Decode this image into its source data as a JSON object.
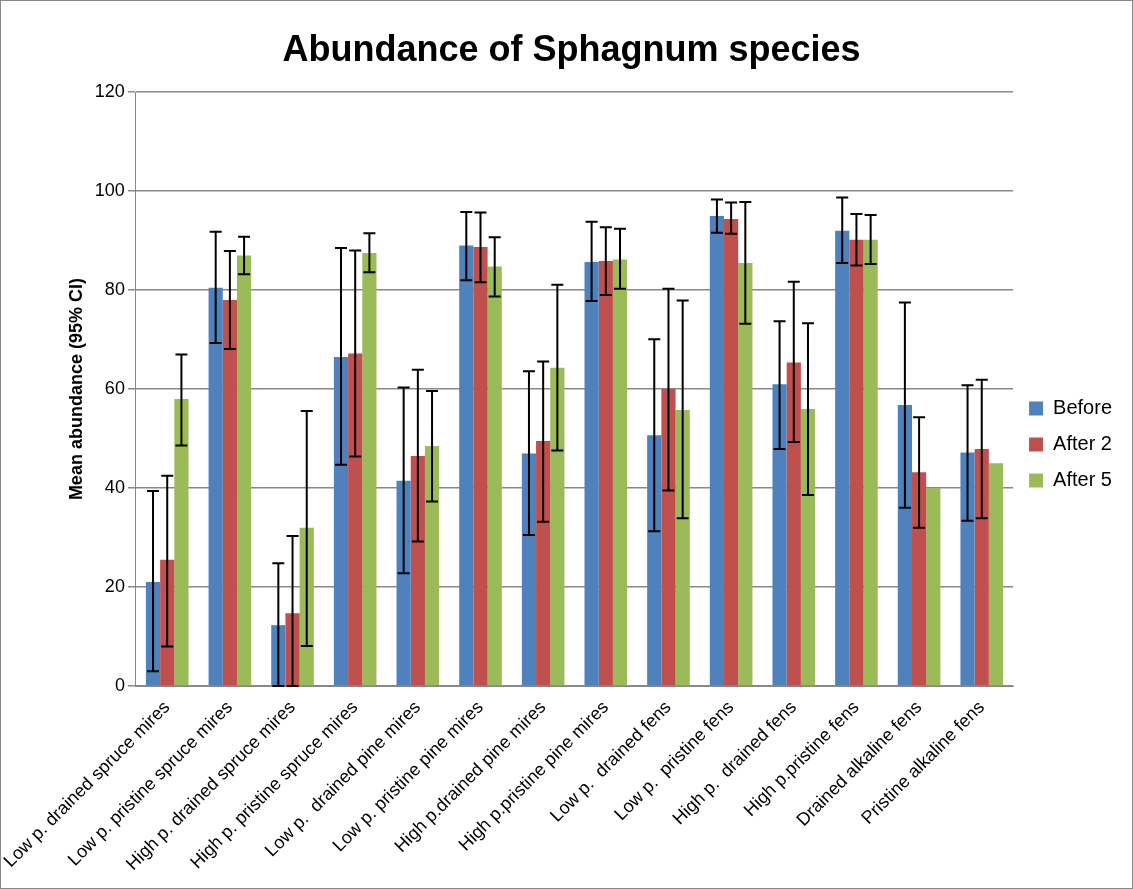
{
  "chart_data": {
    "type": "bar",
    "title": "Abundance of Sphagnum species",
    "ylabel": "Mean abundance (95% CI)",
    "categories": [
      "Low p. drained spruce mires",
      "Low p. pristine spruce mires",
      "High p. drained spruce mires",
      "High p. pristine spruce mires",
      "Low p.  drained pine mires",
      "Low p. pristine pine mires",
      "High p.drained pine mires",
      "High p.pristine pine mires",
      "Low p.  drained fens",
      "Low p.  pristine fens",
      "High p.  drained fens",
      "High p.pristine fens",
      "Drained alkaline fens",
      "Pristine alkaline fens"
    ],
    "series": [
      {
        "name": "Before",
        "color": "#4f81bd",
        "values": [
          21,
          80.5,
          12.3,
          66.5,
          41.5,
          89,
          47,
          85.7,
          50.7,
          95,
          61,
          92,
          56.8,
          47.2
        ],
        "errors": [
          [
            3,
            39.4
          ],
          [
            69.3,
            91.8
          ],
          [
            0,
            24.8
          ],
          [
            44.7,
            88.5
          ],
          [
            22.8,
            60.3
          ],
          [
            82,
            95.8
          ],
          [
            30.5,
            63.6
          ],
          [
            77.8,
            93.8
          ],
          [
            31.3,
            70.1
          ],
          [
            91.6,
            98.3
          ],
          [
            47.9,
            73.7
          ],
          [
            85.5,
            98.7
          ],
          [
            36,
            77.5
          ],
          [
            33.4,
            60.8
          ]
        ]
      },
      {
        "name": "After 2",
        "color": "#c0504d",
        "values": [
          25.5,
          78,
          14.7,
          67.2,
          46.5,
          88.7,
          49.5,
          85.9,
          60,
          94.4,
          65.4,
          90.2,
          43.2,
          47.9
        ],
        "errors": [
          [
            8,
            42.5
          ],
          [
            68.1,
            87.9
          ],
          [
            0,
            30.3
          ],
          [
            46.4,
            88
          ],
          [
            29.2,
            63.9
          ],
          [
            81.6,
            95.7
          ],
          [
            33.2,
            65.6
          ],
          [
            79,
            92.7
          ],
          [
            39.5,
            80.3
          ],
          [
            91.4,
            97.7
          ],
          [
            49.3,
            81.7
          ],
          [
            85,
            95.4
          ],
          [
            32,
            54.3
          ],
          [
            33.9,
            61.9
          ]
        ]
      },
      {
        "name": "After 5",
        "color": "#9bbb59",
        "values": [
          58,
          87,
          32,
          87.5,
          48.5,
          84.8,
          64.3,
          86.2,
          55.8,
          85.5,
          56,
          90.2,
          40,
          45
        ],
        "errors": [
          [
            48.6,
            67
          ],
          [
            83.2,
            90.8
          ],
          [
            8.1,
            55.6
          ],
          [
            83.6,
            91.5
          ],
          [
            37.3,
            59.6
          ],
          [
            78.7,
            90.7
          ],
          [
            47.6,
            81.1
          ],
          [
            80.3,
            92.4
          ],
          [
            33.9,
            77.9
          ],
          [
            73.2,
            97.8
          ],
          [
            38.6,
            73.3
          ],
          [
            85.3,
            95.2
          ],
          null,
          null
        ]
      }
    ],
    "ylim": [
      0,
      120
    ],
    "yticks": [
      0,
      20,
      40,
      60,
      80,
      100,
      120
    ],
    "grid": "y",
    "legend": "right"
  }
}
